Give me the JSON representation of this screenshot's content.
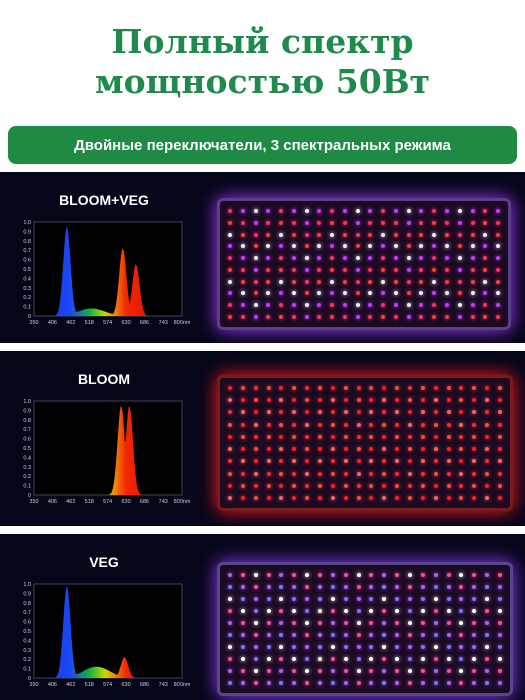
{
  "title": {
    "line1": "Полный спектр",
    "line2": "мощностью 50Вт"
  },
  "banner": "Двойные переключатели, 3 спектральных режима",
  "modes": [
    {
      "label": "BLOOM+VEG",
      "led_colors": [
        "#ff2f6a",
        "#c13cff",
        "#f4eaff",
        "#ff3b3b"
      ],
      "glow": "#a33bff",
      "frame": "#5a3e8a"
    },
    {
      "label": "BLOOM",
      "led_colors": [
        "#ff1f1f",
        "#ff4a3a",
        "#ff2a2a",
        "#ff6060"
      ],
      "glow": "#ff1a1a",
      "frame": "#7a1a1a"
    },
    {
      "label": "VEG",
      "led_colors": [
        "#b05cff",
        "#ff4aa0",
        "#ffffff",
        "#8a6cff"
      ],
      "glow": "#9a3dff",
      "frame": "#56468a"
    }
  ],
  "chart_common": {
    "y_ticks": [
      "1.0",
      "0.9",
      "0.8",
      "0.7",
      "0.6",
      "0.5",
      "0.4",
      "0.3",
      "0.2",
      "0.1",
      "0"
    ],
    "x_ticks": [
      "350",
      "406",
      "462",
      "518",
      "574",
      "630",
      "686",
      "743",
      "800nm"
    ]
  },
  "chart_data": [
    {
      "type": "area",
      "x_range": [
        350,
        800
      ],
      "ylim": [
        0,
        1
      ],
      "peaks": [
        {
          "x": 450,
          "y": 0.95
        },
        {
          "x": 525,
          "y": 0.08
        },
        {
          "x": 620,
          "y": 0.72
        },
        {
          "x": 660,
          "y": 0.55
        }
      ]
    },
    {
      "type": "area",
      "x_range": [
        350,
        800
      ],
      "ylim": [
        0,
        1
      ],
      "peaks": [
        {
          "x": 615,
          "y": 0.95
        },
        {
          "x": 640,
          "y": 0.95
        }
      ]
    },
    {
      "type": "area",
      "x_range": [
        350,
        800
      ],
      "ylim": [
        0,
        1
      ],
      "peaks": [
        {
          "x": 450,
          "y": 0.98
        },
        {
          "x": 540,
          "y": 0.12
        },
        {
          "x": 625,
          "y": 0.22
        }
      ]
    }
  ]
}
